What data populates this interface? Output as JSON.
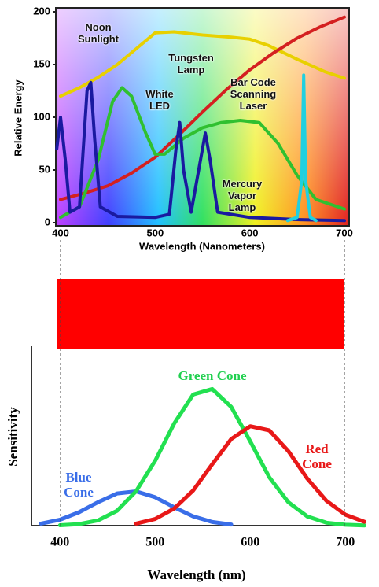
{
  "chart_data": [
    {
      "type": "line",
      "x_label": "Wavelength (Nanometers)",
      "y_label": "Relative Energy",
      "xlim": [
        395,
        705
      ],
      "ylim": [
        0,
        200
      ],
      "xticks": [
        400,
        500,
        600,
        700
      ],
      "yticks": [
        0,
        50,
        100,
        150,
        200
      ],
      "series": [
        {
          "name": "Noon Sunlight",
          "color": "#e8d000",
          "x": [
            400,
            420,
            440,
            460,
            480,
            500,
            520,
            550,
            580,
            600,
            620,
            650,
            680,
            700
          ],
          "values": [
            120,
            128,
            138,
            150,
            165,
            180,
            181,
            178,
            176,
            174,
            168,
            155,
            143,
            137
          ]
        },
        {
          "name": "Tungsten Lamp",
          "color": "#d42020",
          "x": [
            400,
            425,
            450,
            475,
            500,
            525,
            550,
            575,
            600,
            625,
            650,
            675,
            700
          ],
          "values": [
            22,
            28,
            35,
            47,
            62,
            83,
            105,
            126,
            145,
            161,
            175,
            186,
            195
          ]
        },
        {
          "name": "White LED",
          "color": "#30c030",
          "x": [
            400,
            420,
            440,
            455,
            465,
            475,
            490,
            500,
            510,
            530,
            550,
            570,
            590,
            610,
            630,
            650,
            670,
            700
          ],
          "values": [
            5,
            15,
            60,
            115,
            128,
            120,
            85,
            65,
            65,
            80,
            90,
            95,
            97,
            95,
            75,
            45,
            22,
            13
          ]
        },
        {
          "name": "Mercury Vapor Lamp",
          "color": "#1a1aa0",
          "x": [
            396,
            400,
            405,
            410,
            420,
            428,
            432,
            436,
            442,
            460,
            500,
            515,
            522,
            526,
            530,
            538,
            548,
            553,
            558,
            566,
            600,
            650,
            700
          ],
          "values": [
            70,
            100,
            60,
            10,
            15,
            125,
            133,
            80,
            15,
            6,
            5,
            8,
            70,
            95,
            50,
            10,
            60,
            85,
            60,
            10,
            5,
            3,
            2
          ]
        },
        {
          "name": "Bar Code Scanning Laser",
          "color": "#20d0e0",
          "x": [
            640,
            650,
            655,
            657,
            659,
            664,
            670
          ],
          "values": [
            2,
            5,
            40,
            140,
            40,
            5,
            2
          ]
        }
      ]
    },
    {
      "type": "line",
      "x_label": "Wavelength (nm)",
      "y_label": "Sensitivity",
      "xlim": [
        370,
        720
      ],
      "ylim": [
        0,
        1.3
      ],
      "xticks": [
        400,
        500,
        600,
        700
      ],
      "series": [
        {
          "name": "Blue Cone",
          "color": "#3a6ee8",
          "x": [
            380,
            400,
            420,
            440,
            460,
            480,
            500,
            520,
            540,
            560,
            580
          ],
          "values": [
            0.015,
            0.043,
            0.097,
            0.17,
            0.233,
            0.248,
            0.206,
            0.133,
            0.067,
            0.026,
            0.008
          ]
        },
        {
          "name": "Green Cone",
          "color": "#22e050",
          "x": [
            400,
            420,
            440,
            460,
            480,
            500,
            520,
            540,
            560,
            580,
            600,
            620,
            640,
            660,
            680,
            700,
            720
          ],
          "values": [
            0.003,
            0.011,
            0.038,
            0.108,
            0.25,
            0.47,
            0.74,
            0.95,
            0.99,
            0.86,
            0.61,
            0.35,
            0.17,
            0.066,
            0.021,
            0.006,
            0.001
          ]
        },
        {
          "name": "Red Cone",
          "color": "#e81818",
          "x": [
            480,
            500,
            520,
            540,
            560,
            580,
            600,
            620,
            640,
            660,
            680,
            700,
            720
          ],
          "values": [
            0.015,
            0.048,
            0.124,
            0.255,
            0.445,
            0.628,
            0.72,
            0.69,
            0.54,
            0.34,
            0.18,
            0.079,
            0.028
          ]
        }
      ]
    }
  ]
}
